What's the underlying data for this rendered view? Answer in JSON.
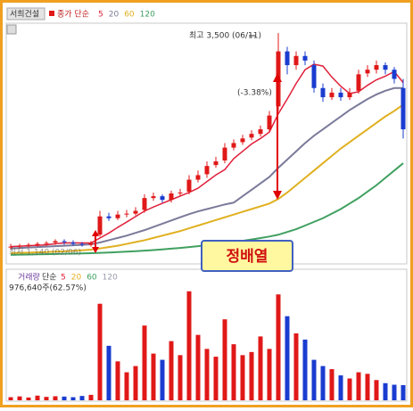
{
  "chart_data": [
    {
      "type": "candlestick",
      "title": "서희건설",
      "subtitle": "종가 단순",
      "open": [
        1160,
        1170,
        1185,
        1195,
        1205,
        1215,
        1230,
        1215,
        1200,
        1190,
        1300,
        1500,
        1480,
        1520,
        1530,
        1570,
        1700,
        1720,
        1680,
        1750,
        1770,
        1900,
        1960,
        2060,
        2110,
        2250,
        2310,
        2360,
        2400,
        2450,
        2700,
        3300,
        3150,
        3250,
        3150,
        2900,
        2800,
        2850,
        2800,
        2870,
        3060,
        3100,
        3150,
        3100,
        2900
      ],
      "high": [
        1200,
        1200,
        1210,
        1220,
        1230,
        1250,
        1250,
        1240,
        1220,
        1230,
        1560,
        1540,
        1560,
        1570,
        1600,
        1740,
        1760,
        1740,
        1780,
        1800,
        1950,
        2000,
        2100,
        2150,
        2300,
        2340,
        2390,
        2440,
        2490,
        2650,
        3500,
        3350,
        3300,
        3300,
        3200,
        2950,
        2900,
        2900,
        2900,
        3100,
        3150,
        3200,
        3180,
        3130,
        3000
      ],
      "low": [
        1140,
        1150,
        1160,
        1170,
        1180,
        1190,
        1190,
        1180,
        1170,
        1170,
        1280,
        1450,
        1460,
        1490,
        1510,
        1540,
        1670,
        1650,
        1650,
        1720,
        1740,
        1870,
        1920,
        2030,
        2080,
        2220,
        2280,
        2330,
        2370,
        2420,
        2650,
        3050,
        3100,
        3150,
        2850,
        2750,
        2770,
        2760,
        2770,
        2840,
        3020,
        3060,
        3050,
        2950,
        2350
      ],
      "close": [
        1170,
        1180,
        1190,
        1200,
        1210,
        1230,
        1220,
        1200,
        1190,
        1210,
        1500,
        1480,
        1520,
        1530,
        1560,
        1700,
        1720,
        1680,
        1750,
        1760,
        1900,
        1950,
        2050,
        2100,
        2250,
        2300,
        2350,
        2400,
        2450,
        2600,
        3300,
        3150,
        3250,
        3200,
        2900,
        2800,
        2850,
        2800,
        2850,
        3050,
        3100,
        3150,
        3100,
        3000,
        2450
      ],
      "up_color": "#e01818",
      "down_color": "#1a3cd0",
      "ylim": [
        1040,
        3530
      ],
      "series": [
        {
          "name": "5",
          "color": "#e0203a",
          "values": [
            1170,
            1175,
            1180,
            1185,
            1190,
            1202,
            1210,
            1212,
            1210,
            1210,
            1264,
            1318,
            1380,
            1438,
            1498,
            1558,
            1602,
            1642,
            1682,
            1722,
            1762,
            1808,
            1880,
            1952,
            2010,
            2130,
            2210,
            2290,
            2350,
            2420,
            2620,
            2780,
            2950,
            3100,
            3160,
            3140,
            3020,
            2920,
            2840,
            2860,
            2930,
            2990,
            3030,
            3080,
            2960
          ]
        },
        {
          "name": "20",
          "color": "#7a7a9a",
          "values": [
            1150,
            1155,
            1160,
            1165,
            1170,
            1175,
            1180,
            1185,
            1190,
            1195,
            1215,
            1240,
            1265,
            1290,
            1320,
            1350,
            1385,
            1420,
            1455,
            1490,
            1525,
            1555,
            1580,
            1605,
            1630,
            1650,
            1720,
            1790,
            1860,
            1930,
            2030,
            2120,
            2210,
            2300,
            2380,
            2450,
            2520,
            2590,
            2660,
            2720,
            2780,
            2830,
            2870,
            2900,
            2900
          ]
        },
        {
          "name": "60",
          "color": "#e0b020",
          "values": [
            1100,
            1102,
            1105,
            1108,
            1111,
            1115,
            1119,
            1124,
            1130,
            1137,
            1150,
            1165,
            1180,
            1200,
            1220,
            1240,
            1265,
            1290,
            1315,
            1340,
            1370,
            1400,
            1430,
            1460,
            1490,
            1520,
            1550,
            1580,
            1610,
            1640,
            1690,
            1760,
            1840,
            1920,
            2000,
            2080,
            2160,
            2240,
            2310,
            2380,
            2450,
            2520,
            2590,
            2650,
            2720
          ]
        },
        {
          "name": "120",
          "color": "#40a060",
          "values": [
            1080,
            1082,
            1084,
            1086,
            1088,
            1090,
            1092,
            1094,
            1096,
            1098,
            1102,
            1106,
            1110,
            1115,
            1120,
            1126,
            1132,
            1140,
            1148,
            1156,
            1165,
            1175,
            1185,
            1196,
            1208,
            1220,
            1234,
            1248,
            1264,
            1280,
            1300,
            1330,
            1360,
            1400,
            1440,
            1480,
            1530,
            1580,
            1640,
            1700,
            1770,
            1840,
            1920,
            2000,
            2080
          ]
        }
      ],
      "annotations": [
        "최고 3,500 (06/11)",
        "(-3.38%)",
        "최저 1,140 (02/06)",
        "정배열"
      ]
    },
    {
      "type": "volume",
      "title": "거래량",
      "subtitle": "단순",
      "legend": [
        {
          "name": "5",
          "color": "#e0203a"
        },
        {
          "name": "20",
          "color": "#e0b020"
        },
        {
          "name": "60",
          "color": "#40a060"
        },
        {
          "name": "120",
          "color": "#9a9aaa"
        }
      ],
      "values": [
        200000,
        250000,
        180000,
        300000,
        220000,
        260000,
        240000,
        200000,
        280000,
        350000,
        6200000,
        3500000,
        2500000,
        1800000,
        2200000,
        4800000,
        3000000,
        2600000,
        3800000,
        2900000,
        7000000,
        4200000,
        3300000,
        2800000,
        5200000,
        3600000,
        2900000,
        3100000,
        4100000,
        3300000,
        6800000,
        5400000,
        4300000,
        3900000,
        2600000,
        2200000,
        2000000,
        1600000,
        1400000,
        1800000,
        1700000,
        1300000,
        1100000,
        1000000,
        976640
      ],
      "ylim": [
        0,
        7500000
      ],
      "label": "976,640주(62.57%)"
    }
  ]
}
